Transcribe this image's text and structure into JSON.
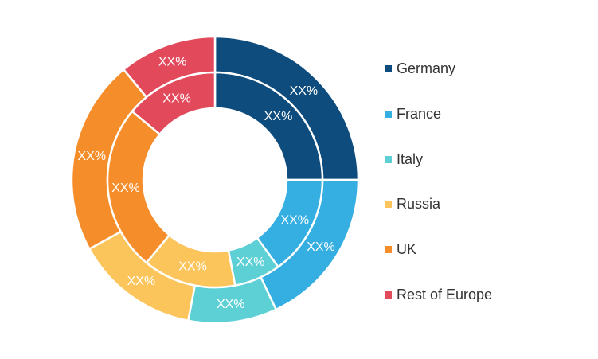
{
  "chart_data": {
    "type": "pie",
    "categories": [
      "Germany",
      "France",
      "Italy",
      "Russia",
      "UK",
      "Rest of Europe"
    ],
    "colors": [
      "#0d4c7c",
      "#35aee2",
      "#5dd0d6",
      "#fcc55c",
      "#f68d2b",
      "#e24a5c"
    ],
    "series": [
      {
        "values": [
          25,
          18,
          10,
          14,
          22,
          11
        ],
        "labels": [
          "XX%",
          "XX%",
          "XX%",
          "XX%",
          "XX%",
          "XX%"
        ]
      },
      {
        "values": [
          25,
          15,
          7,
          14,
          25,
          14
        ],
        "labels": [
          "XX%",
          "XX%",
          "XX%",
          "XX%",
          "XX%",
          "XX%"
        ]
      }
    ],
    "legend": {
      "position": "right",
      "entries": [
        "Germany",
        "France",
        "Italy",
        "Russia",
        "UK",
        "Rest of Europe"
      ]
    }
  }
}
